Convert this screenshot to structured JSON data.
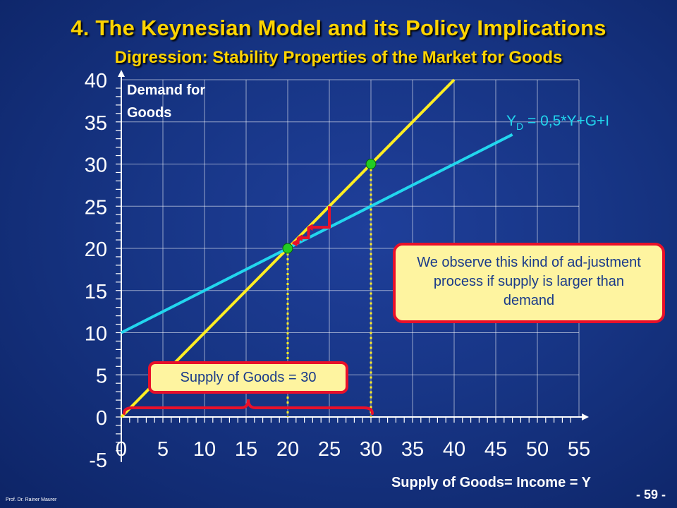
{
  "slide": {
    "title": "4. The Keynesian Model and its Policy Implications",
    "subtitle": "Digression: Stability Properties of the Market for Goods",
    "footer_left": "Prof. Dr. Rainer Maurer",
    "page_number": "- 59 -"
  },
  "callouts": {
    "adjustment_text": "We observe this kind of ad-justment process if supply is larger than demand",
    "supply_label": "Supply of Goods = 30"
  },
  "colors": {
    "background": "#173585",
    "title": "#ffd400",
    "supply_line": "#ffee22",
    "demand_line": "#22d6ee",
    "marker": "#e8102a",
    "point": "#22cc22"
  },
  "chart_data": {
    "type": "line",
    "xlabel": "Supply of Goods= Income = Y",
    "ylabel": "Demand for Goods",
    "xlim": [
      0,
      55
    ],
    "ylim": [
      -5,
      40
    ],
    "x_ticks": [
      0,
      5,
      10,
      15,
      20,
      25,
      30,
      35,
      40,
      45,
      50,
      55
    ],
    "y_ticks": [
      -5,
      0,
      5,
      10,
      15,
      20,
      25,
      30,
      35,
      40
    ],
    "grid": true,
    "series": [
      {
        "name": "",
        "slope": 1,
        "intercept": 0,
        "x_range": [
          0,
          40
        ]
      },
      {
        "name": "Y_D = 0,5*Y+G+I",
        "slope": 0.5,
        "intercept": 10,
        "x_range": [
          0,
          47
        ]
      }
    ],
    "points": [
      {
        "x": 20,
        "y": 20
      },
      {
        "x": 30,
        "y": 30
      }
    ],
    "adjustment_steps": [
      [
        25,
        25
      ],
      [
        22.5,
        22.5
      ],
      [
        21.25,
        21.25
      ]
    ],
    "brace_range": [
      0,
      30
    ]
  }
}
